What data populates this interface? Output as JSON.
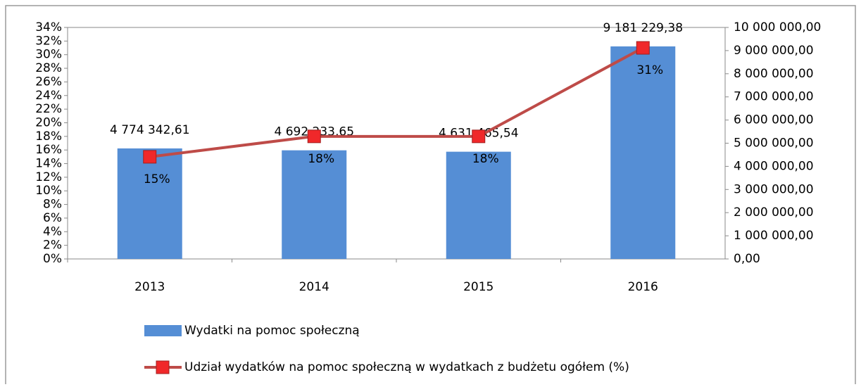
{
  "chart_data": {
    "type": "bar-line",
    "categories": [
      "2013",
      "2014",
      "2015",
      "2016"
    ],
    "series": [
      {
        "name": "Wydatki na pomoc społeczną",
        "type": "bar",
        "axis": "y2",
        "color": "#558ed5",
        "values": [
          4774342.61,
          4692233.65,
          4631465.54,
          9181229.38
        ],
        "value_labels": [
          "4 774 342,61",
          "4 692 233,65",
          "4 631 465,54",
          "9 181 229,38"
        ]
      },
      {
        "name": "Udział wydatków na pomoc społeczną w wydatkach z budżetu ogółem (%)",
        "type": "line",
        "axis": "y",
        "color": "#be4b48",
        "marker_color": "#f0282a",
        "values": [
          15,
          18,
          18,
          31
        ],
        "value_labels": [
          "15%",
          "18%",
          "18%",
          "31%"
        ]
      }
    ],
    "ylim": [
      0,
      34
    ],
    "yticks": [
      {
        "value": 0,
        "label": "0%"
      },
      {
        "value": 2,
        "label": "2%"
      },
      {
        "value": 4,
        "label": "4%"
      },
      {
        "value": 6,
        "label": "6%"
      },
      {
        "value": 8,
        "label": "8%"
      },
      {
        "value": 10,
        "label": "10%"
      },
      {
        "value": 12,
        "label": "12%"
      },
      {
        "value": 14,
        "label": "14%"
      },
      {
        "value": 16,
        "label": "16%"
      },
      {
        "value": 18,
        "label": "18%"
      },
      {
        "value": 20,
        "label": "20%"
      },
      {
        "value": 22,
        "label": "22%"
      },
      {
        "value": 24,
        "label": "24%"
      },
      {
        "value": 26,
        "label": "26%"
      },
      {
        "value": 28,
        "label": "28%"
      },
      {
        "value": 30,
        "label": "30%"
      },
      {
        "value": 32,
        "label": "32%"
      },
      {
        "value": 34,
        "label": "34%"
      }
    ],
    "y2lim": [
      0,
      10000000
    ],
    "y2ticks": [
      {
        "value": 0,
        "label": "0,00"
      },
      {
        "value": 1000000,
        "label": "1 000 000,00"
      },
      {
        "value": 2000000,
        "label": "2 000 000,00"
      },
      {
        "value": 3000000,
        "label": "3 000 000,00"
      },
      {
        "value": 4000000,
        "label": "4 000 000,00"
      },
      {
        "value": 5000000,
        "label": "5 000 000,00"
      },
      {
        "value": 6000000,
        "label": "6 000 000,00"
      },
      {
        "value": 7000000,
        "label": "7 000 000,00"
      },
      {
        "value": 8000000,
        "label": "8 000 000,00"
      },
      {
        "value": 9000000,
        "label": "9 000 000,00"
      },
      {
        "value": 10000000,
        "label": "10 000 000,00"
      }
    ],
    "grid": false,
    "legend": "bottom"
  }
}
